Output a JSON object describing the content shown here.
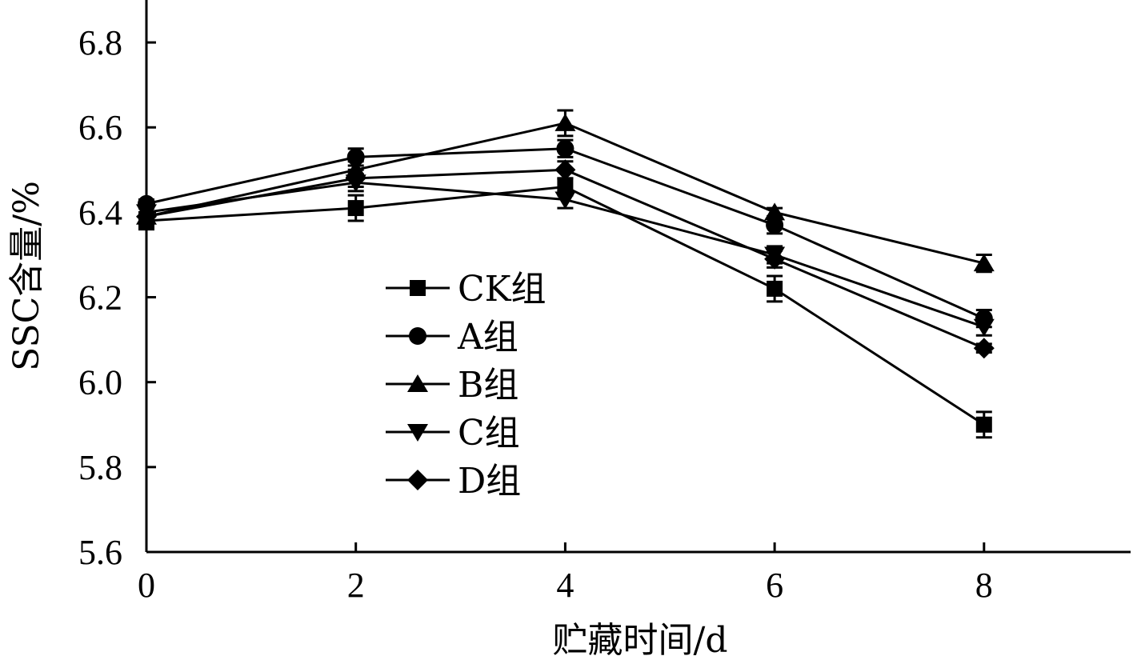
{
  "chart_data": {
    "type": "line",
    "xlabel": "贮藏时间/d",
    "ylabel": "SSC含量/%",
    "x": [
      0,
      2,
      4,
      6,
      8
    ],
    "xlim": [
      0,
      9.4
    ],
    "ylim": [
      5.6,
      6.9
    ],
    "xticks": [
      "0",
      "2",
      "4",
      "6",
      "8"
    ],
    "yticks": [
      "5.6",
      "5.8",
      "6.0",
      "6.2",
      "6.4",
      "6.6",
      "6.8"
    ],
    "legend_position": "center-left",
    "series": [
      {
        "name": "CK组",
        "marker": "square",
        "values": [
          6.38,
          6.41,
          6.46,
          6.22,
          5.9
        ],
        "errors": [
          0.02,
          0.03,
          0.02,
          0.03,
          0.03
        ]
      },
      {
        "name": "A组",
        "marker": "circle",
        "values": [
          6.42,
          6.53,
          6.55,
          6.37,
          6.15
        ],
        "errors": [
          0.01,
          0.02,
          0.02,
          0.02,
          0.02
        ]
      },
      {
        "name": "B组",
        "marker": "triangle-up",
        "values": [
          6.39,
          6.5,
          6.61,
          6.4,
          6.28
        ],
        "errors": [
          0.02,
          0.02,
          0.03,
          0.01,
          0.02
        ]
      },
      {
        "name": "C组",
        "marker": "triangle-down",
        "values": [
          6.4,
          6.47,
          6.43,
          6.3,
          6.13
        ],
        "errors": [
          0.01,
          0.02,
          0.02,
          0.02,
          0.02
        ]
      },
      {
        "name": "D组",
        "marker": "diamond",
        "values": [
          6.39,
          6.48,
          6.5,
          6.29,
          6.08
        ],
        "errors": [
          0.01,
          0.02,
          0.02,
          0.02,
          0.01
        ]
      }
    ]
  }
}
